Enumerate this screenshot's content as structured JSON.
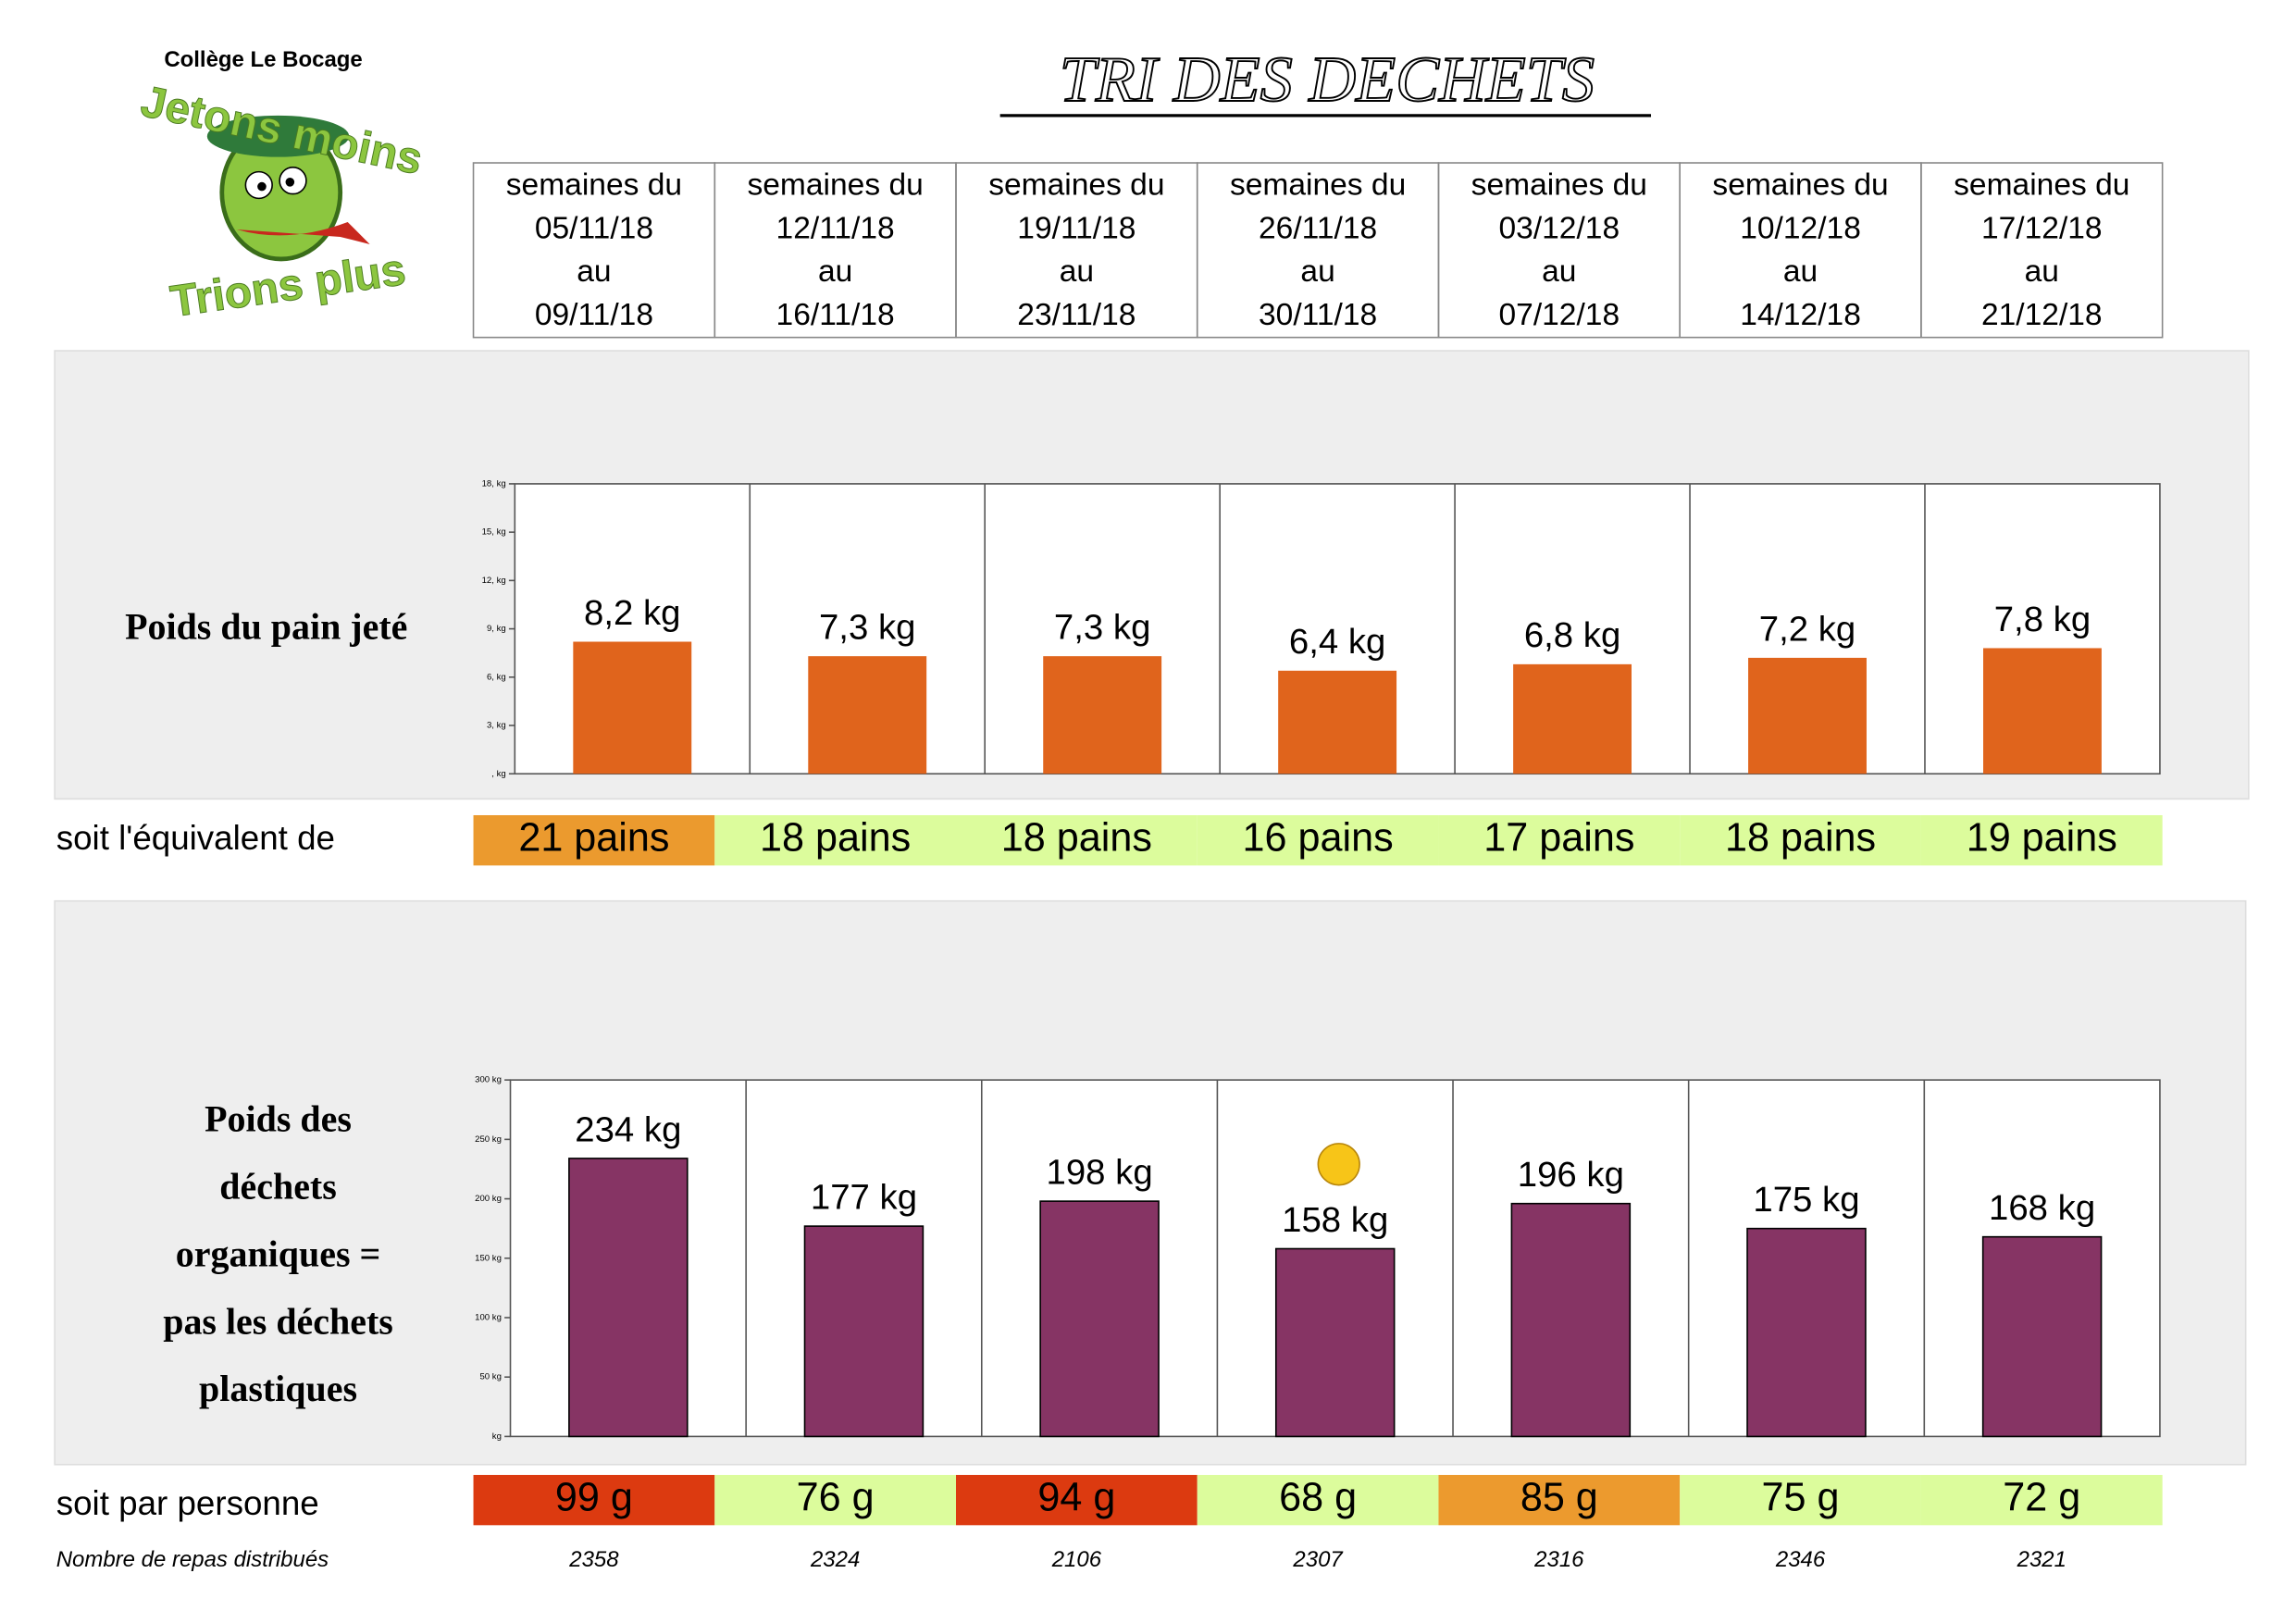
{
  "school": "Collège Le Bocage",
  "logo": {
    "top": "Jetons moins",
    "bottom": "Trions plus"
  },
  "title": "TRI DES DECHETS",
  "weeks": [
    [
      "semaines du",
      "05/11/18",
      "au",
      "09/11/18"
    ],
    [
      "semaines du",
      "12/11/18",
      "au",
      "16/11/18"
    ],
    [
      "semaines du",
      "19/11/18",
      "au",
      "23/11/18"
    ],
    [
      "semaines du",
      "26/11/18",
      "au",
      "30/11/18"
    ],
    [
      "semaines du",
      "03/12/18",
      "au",
      "07/12/18"
    ],
    [
      "semaines du",
      "10/12/18",
      "au",
      "14/12/18"
    ],
    [
      "semaines du",
      "17/12/18",
      "au",
      "21/12/18"
    ]
  ],
  "chart_data": [
    {
      "type": "bar",
      "label": [
        "Poids du pain jeté"
      ],
      "categories": [
        null,
        null,
        null,
        null,
        null,
        null,
        null
      ],
      "values": [
        8.2,
        7.3,
        7.3,
        6.4,
        6.8,
        7.2,
        7.8
      ],
      "value_labels": [
        "8,2 kg",
        "7,3 kg",
        "7,3 kg",
        "6,4 kg",
        "6,8 kg",
        "7,2 kg",
        "7,8 kg"
      ],
      "color": "#e0641c",
      "ylim": [
        0,
        18
      ],
      "yticks": [
        {
          "value": 0,
          "label": ", kg"
        },
        {
          "value": 3,
          "label": "3, kg"
        },
        {
          "value": 6,
          "label": "6, kg"
        },
        {
          "value": 9,
          "label": "9, kg"
        },
        {
          "value": 12,
          "label": "12, kg"
        },
        {
          "value": 15,
          "label": "15, kg"
        },
        {
          "value": 18,
          "label": "18, kg"
        }
      ]
    },
    {
      "type": "bar",
      "label": [
        "Poids des",
        "déchets",
        "organiques =",
        "pas les déchets",
        "plastiques"
      ],
      "categories": [
        null,
        null,
        null,
        null,
        null,
        null,
        null
      ],
      "values": [
        234,
        177,
        198,
        158,
        196,
        175,
        168
      ],
      "value_labels": [
        "234 kg",
        "177 kg",
        "198 kg",
        "158 kg",
        "196 kg",
        "175 kg",
        "168 kg"
      ],
      "color": "#863464",
      "ylim": [
        0,
        300
      ],
      "yticks": [
        {
          "value": 0,
          "label": "kg"
        },
        {
          "value": 50,
          "label": "50 kg"
        },
        {
          "value": 100,
          "label": "100 kg"
        },
        {
          "value": 150,
          "label": "150 kg"
        },
        {
          "value": 200,
          "label": "200 kg"
        },
        {
          "value": 250,
          "label": "250 kg"
        },
        {
          "value": 300,
          "label": "300 kg"
        }
      ]
    }
  ],
  "equivalent": {
    "label": "soit l'équivalent de",
    "cells": [
      "21 pains",
      "18 pains",
      "18 pains",
      "16 pains",
      "17 pains",
      "18 pains",
      "19 pains"
    ],
    "colors": [
      "#eb9a2e",
      "#dcfc9c",
      "#dcfc9c",
      "#dcfc9c",
      "#dcfc9c",
      "#dcfc9c",
      "#dcfc9c"
    ]
  },
  "per_person": {
    "label": "soit par personne",
    "cells": [
      "99 g",
      "76 g",
      "94 g",
      "68 g",
      "85 g",
      "75 g",
      "72 g"
    ],
    "colors": [
      "#dc3a10",
      "#dcfc9c",
      "#dc3a10",
      "#dcfc9c",
      "#ec9a2e",
      "#dcfc9c",
      "#dcfc9c"
    ]
  },
  "meals": {
    "label": "Nombre de repas distribués",
    "values": [
      2358,
      2324,
      2106,
      2307,
      2316,
      2346,
      2321
    ]
  }
}
